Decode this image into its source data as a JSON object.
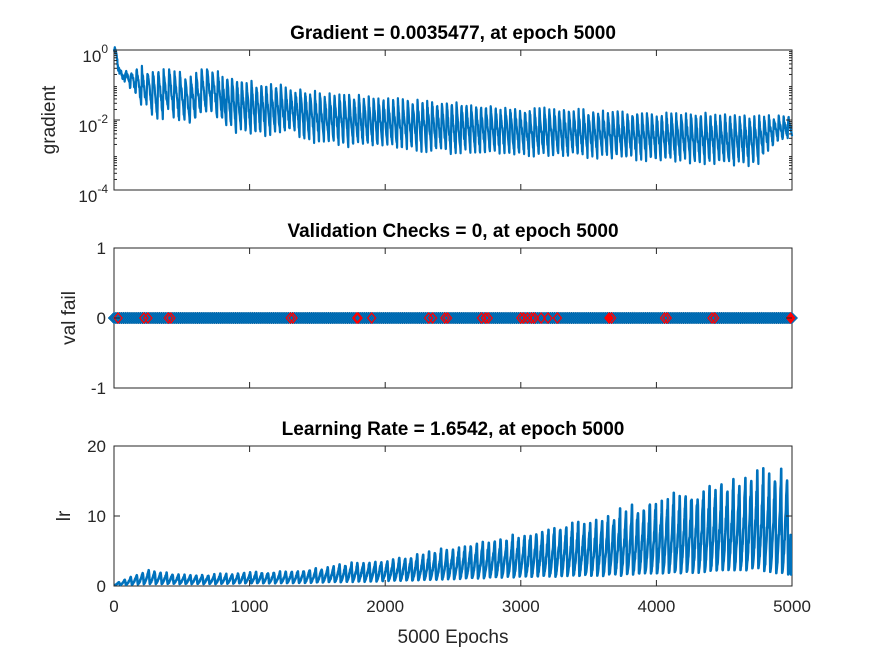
{
  "figure": {
    "xlabel": "5000 Epochs"
  },
  "chart_data": [
    {
      "type": "line",
      "title": "Gradient = 0.0035477, at epoch 5000",
      "xlabel": "",
      "ylabel": "gradient",
      "yscale": "log",
      "xlim": [
        0,
        5000
      ],
      "ylim": [
        0.0001,
        1
      ],
      "yticks": [
        {
          "base": "10",
          "exp": "-4"
        },
        {
          "base": "10",
          "exp": "-2"
        },
        {
          "base": "10",
          "exp": "0"
        }
      ],
      "grid": false,
      "color": "#0072BD",
      "series": [
        {
          "x": [
            0,
            10,
            30,
            60,
            100,
            130,
            160,
            190,
            220,
            250,
            280,
            310,
            340,
            370,
            400,
            450,
            500,
            550,
            600,
            650,
            700,
            750,
            800,
            900,
            1000,
            1100,
            1200,
            1300,
            1400,
            1500,
            1750,
            2000,
            2250,
            2500,
            2750,
            3000,
            3250,
            3500,
            3750,
            4000,
            4250,
            4500,
            4750,
            5000
          ],
          "y": [
            1,
            0.9,
            0.3,
            0.15,
            0.12,
            0.08,
            0.06,
            0.03,
            0.02,
            0.03,
            0.015,
            0.012,
            0.015,
            0.01,
            0.02,
            0.012,
            0.01,
            0.008,
            0.01,
            0.015,
            0.02,
            0.015,
            0.008,
            0.005,
            0.005,
            0.004,
            0.004,
            0.005,
            0.003,
            0.0025,
            0.002,
            0.0018,
            0.0015,
            0.0013,
            0.0012,
            0.0011,
            0.001,
            0.001,
            0.0009,
            0.0008,
            0.0007,
            0.0006,
            0.0006,
            0.0035477
          ],
          "oscillation_peak": [
            1,
            1,
            0.3,
            0.2,
            0.25,
            0.25,
            0.25,
            0.3,
            0.3,
            0.25,
            0.25,
            0.25,
            0.25,
            0.25,
            0.3,
            0.2,
            0.2,
            0.15,
            0.2,
            0.25,
            0.3,
            0.25,
            0.2,
            0.15,
            0.12,
            0.1,
            0.1,
            0.08,
            0.07,
            0.06,
            0.05,
            0.04,
            0.035,
            0.03,
            0.025,
            0.02,
            0.02,
            0.018,
            0.016,
            0.015,
            0.015,
            0.014,
            0.012,
            0.012
          ]
        }
      ]
    },
    {
      "type": "scatter",
      "title": "Validation Checks = 0, at epoch 5000",
      "xlabel": "",
      "ylabel": "val fail",
      "xlim": [
        0,
        5000
      ],
      "ylim": [
        -1,
        1
      ],
      "yticks": [
        "-1",
        "0",
        "1"
      ],
      "grid": false,
      "series": [
        {
          "name": "",
          "color": "#0072BD",
          "x_range": [
            0,
            5000
          ],
          "y": 0
        },
        {
          "name": "",
          "color": "#FF0000",
          "x": [
            30,
            220,
            250,
            400,
            420,
            1300,
            1320,
            1790,
            1800,
            1900,
            2320,
            2350,
            2440,
            2460,
            2710,
            2740,
            2760,
            3000,
            3020,
            3050,
            3080,
            3100,
            3150,
            3200,
            3270,
            3650,
            3670,
            4060,
            4080,
            4410,
            4430,
            4990
          ],
          "y": 0
        }
      ]
    },
    {
      "type": "line",
      "title": "Learning Rate = 1.6542, at epoch 5000",
      "xlabel": "",
      "ylabel": "lr",
      "xlim": [
        0,
        5000
      ],
      "ylim": [
        0,
        20
      ],
      "xticks": [
        "0",
        "1000",
        "2000",
        "3000",
        "4000",
        "5000"
      ],
      "yticks": [
        "0",
        "10",
        "20"
      ],
      "grid": false,
      "color": "#0072BD",
      "series": [
        {
          "x": [
            0,
            250,
            500,
            750,
            1000,
            1250,
            1500,
            1750,
            2000,
            2250,
            2500,
            2750,
            3000,
            3250,
            3500,
            3750,
            4000,
            4250,
            4500,
            4750,
            5000
          ],
          "y_peak": [
            0.3,
            2.2,
            1.5,
            1.6,
            1.9,
            2.0,
            2.4,
            3.2,
            3.6,
            4.4,
            5.3,
            6.3,
            7.2,
            8.3,
            9.1,
            10.6,
            11.7,
            13.2,
            14.3,
            15.6,
            15.7
          ],
          "y_base": [
            0.1,
            0.3,
            0.3,
            0.3,
            0.4,
            0.4,
            0.5,
            0.6,
            0.7,
            0.8,
            1.0,
            1.2,
            1.3,
            1.4,
            1.5,
            1.6,
            1.8,
            2.0,
            2.2,
            2.4,
            1.6542
          ]
        }
      ]
    }
  ]
}
